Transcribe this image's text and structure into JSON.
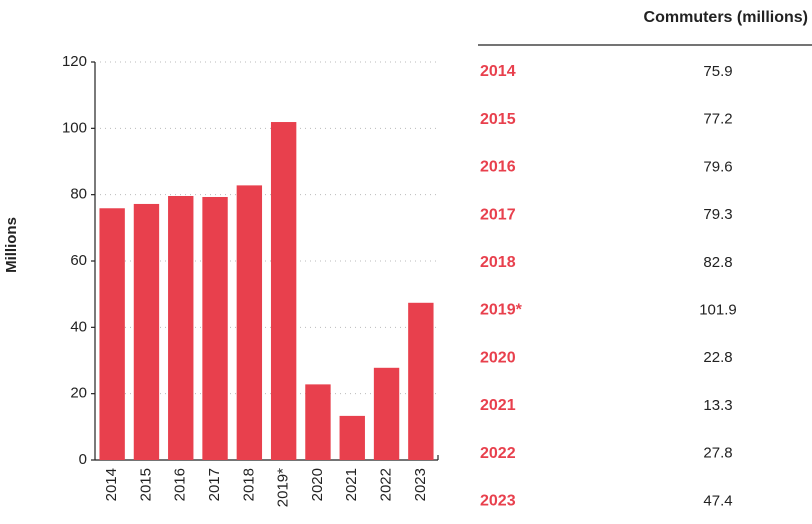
{
  "chart_data": {
    "type": "bar",
    "y_label": "Millions",
    "categories": [
      "2014",
      "2015",
      "2016",
      "2017",
      "2018",
      "2019*",
      "2020",
      "2021",
      "2022",
      "2023"
    ],
    "values": [
      75.9,
      77.2,
      79.6,
      79.3,
      82.8,
      101.9,
      22.8,
      13.3,
      27.8,
      47.4
    ],
    "color": "#e8404d",
    "ylim": [
      0,
      120
    ],
    "yticks": [
      0,
      20,
      40,
      60,
      80,
      100,
      120
    ],
    "grid": true
  },
  "table": {
    "header": "Commuters (millions)"
  }
}
